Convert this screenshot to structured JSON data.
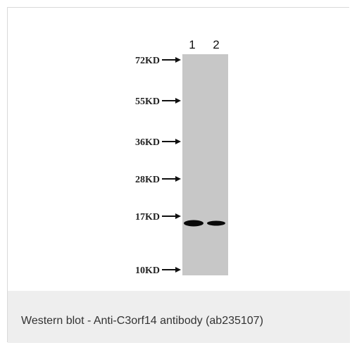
{
  "figure": {
    "lanes": [
      "1",
      "2"
    ],
    "markers": [
      {
        "label": "72KD",
        "kda": 72
      },
      {
        "label": "55KD",
        "kda": 55
      },
      {
        "label": "36KD",
        "kda": 36
      },
      {
        "label": "28KD",
        "kda": 28
      },
      {
        "label": "17KD",
        "kda": 17
      },
      {
        "label": "10KD",
        "kda": 10
      }
    ],
    "colors": {
      "membrane": "#c7c7c7",
      "band": "#0a0a0a"
    }
  },
  "caption": {
    "text": "Western blot - Anti-C3orf14 antibody (ab235107)"
  }
}
